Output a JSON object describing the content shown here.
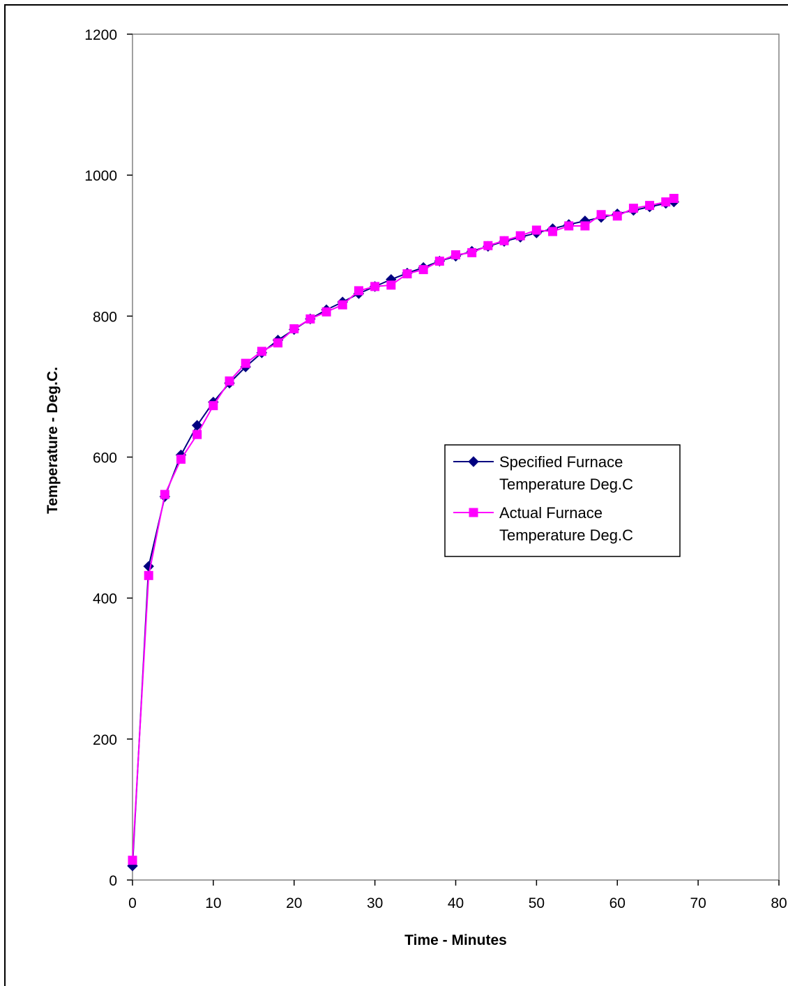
{
  "chart_data": {
    "type": "line",
    "title": "",
    "xlabel": "Time - Minutes",
    "ylabel": "Temperature - Deg.C.",
    "xlim": [
      0,
      80
    ],
    "ylim": [
      0,
      1200
    ],
    "x_ticks": [
      0,
      10,
      20,
      30,
      40,
      50,
      60,
      70,
      80
    ],
    "y_ticks": [
      0,
      200,
      400,
      600,
      800,
      1000,
      1200
    ],
    "grid": false,
    "legend_position": "right-center",
    "series": [
      {
        "name": "Specified Furnace Temperature Deg.C",
        "name_lines": [
          "Specified Furnace",
          "Temperature Deg.C"
        ],
        "color": "#000080",
        "marker": "diamond",
        "x": [
          0,
          2,
          4,
          6,
          8,
          10,
          12,
          14,
          16,
          18,
          20,
          22,
          24,
          26,
          28,
          30,
          32,
          34,
          36,
          38,
          40,
          42,
          44,
          46,
          48,
          50,
          52,
          54,
          56,
          58,
          60,
          62,
          64,
          66,
          67
        ],
        "y": [
          20,
          445,
          544,
          603,
          645,
          678,
          705,
          728,
          748,
          766,
          781,
          796,
          809,
          820,
          832,
          842,
          852,
          861,
          869,
          878,
          885,
          892,
          899,
          906,
          912,
          918,
          924,
          930,
          935,
          940,
          945,
          950,
          955,
          960,
          962
        ]
      },
      {
        "name": "Actual Furnace Temperature Deg.C",
        "name_lines": [
          "Actual Furnace",
          "Temperature Deg.C"
        ],
        "color": "#ff00ff",
        "marker": "square",
        "x": [
          0,
          2,
          4,
          6,
          8,
          10,
          12,
          14,
          16,
          18,
          20,
          22,
          24,
          26,
          28,
          30,
          32,
          34,
          36,
          38,
          40,
          42,
          44,
          46,
          48,
          50,
          52,
          54,
          56,
          58,
          60,
          62,
          64,
          66,
          67
        ],
        "y": [
          28,
          432,
          547,
          597,
          632,
          673,
          708,
          733,
          750,
          762,
          782,
          796,
          806,
          816,
          836,
          842,
          844,
          860,
          866,
          878,
          887,
          890,
          900,
          907,
          914,
          922,
          920,
          928,
          928,
          944,
          942,
          953,
          957,
          962,
          967
        ]
      }
    ]
  }
}
